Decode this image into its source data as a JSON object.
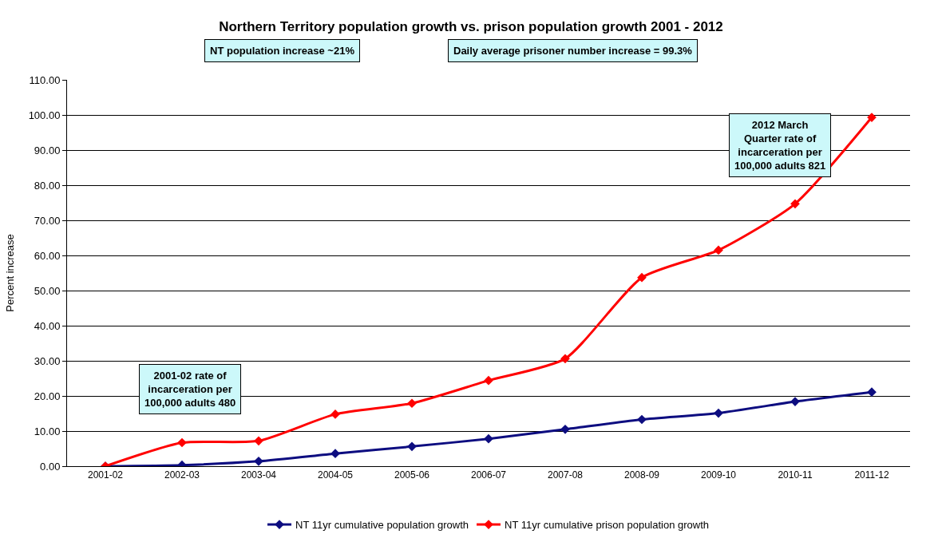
{
  "chart_data": {
    "type": "line",
    "title": "Northern Territory population growth vs. prison population growth 2001 - 2012",
    "ylabel": "Percent increase",
    "categories": [
      "2001-02",
      "2002-03",
      "2003-04",
      "2004-05",
      "2005-06",
      "2006-07",
      "2007-08",
      "2008-09",
      "2009-10",
      "2010-11",
      "2011-12"
    ],
    "series": [
      {
        "name": "NT 11yr cumulative population growth",
        "color": "#0d0d80",
        "values": [
          0,
          0.3,
          1.4,
          3.6,
          5.6,
          7.8,
          10.5,
          13.3,
          15.1,
          18.4,
          21.1
        ]
      },
      {
        "name": "NT 11yr cumulative prison population growth",
        "color": "#ff0000",
        "values": [
          0,
          6.7,
          7.2,
          14.8,
          17.9,
          24.4,
          30.6,
          53.7,
          61.5,
          74.7,
          99.3
        ]
      }
    ],
    "ylim": [
      0,
      110
    ],
    "yticks": [
      {
        "value": 0,
        "label": "0.00"
      },
      {
        "value": 10,
        "label": "10.00"
      },
      {
        "value": 20,
        "label": "20.00"
      },
      {
        "value": 30,
        "label": "30.00"
      },
      {
        "value": 40,
        "label": "40.00"
      },
      {
        "value": 50,
        "label": "50.00"
      },
      {
        "value": 60,
        "label": "60.00"
      },
      {
        "value": 70,
        "label": "70.00"
      },
      {
        "value": 80,
        "label": "80.00"
      },
      {
        "value": 90,
        "label": "90.00"
      },
      {
        "value": 100,
        "label": "100.00"
      },
      {
        "value": 110,
        "label": "110.00"
      }
    ],
    "annotations": [
      "NT population increase ~21%",
      "Daily average prisoner number increase = 99.3%",
      "2001-02 rate of\nincarceration per\n100,000 adults 480",
      "2012 March\nQuarter rate of\nincarceration per\n100,000 adults 821"
    ],
    "grid": "y",
    "legend": "bottom",
    "marker": "diamond",
    "line_style": "solid"
  }
}
